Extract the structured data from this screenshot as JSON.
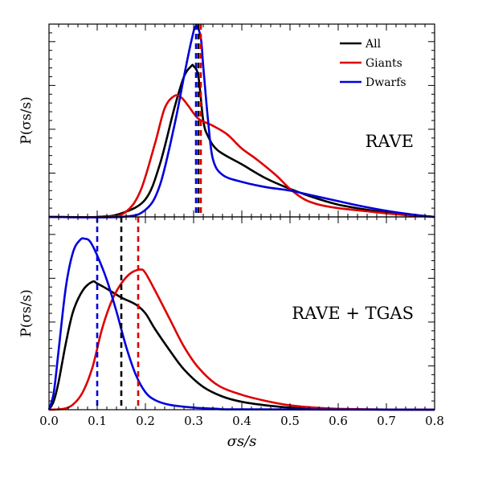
{
  "chart_data": [
    {
      "type": "line",
      "panel": "top",
      "label": "RAVE",
      "ylabel": "P(σs/s)",
      "xlim": [
        0,
        0.8
      ],
      "ylim": [
        0,
        1.1
      ],
      "legend": {
        "placement": "top-right",
        "entries": [
          "All",
          "Giants",
          "Dwarfs"
        ]
      },
      "series": [
        {
          "name": "All",
          "color": "#000000",
          "points": [
            [
              0,
              0
            ],
            [
              0.1,
              0
            ],
            [
              0.15,
              0.02
            ],
            [
              0.2,
              0.1
            ],
            [
              0.23,
              0.3
            ],
            [
              0.26,
              0.62
            ],
            [
              0.28,
              0.8
            ],
            [
              0.295,
              0.86
            ],
            [
              0.3,
              0.86
            ],
            [
              0.31,
              0.8
            ],
            [
              0.32,
              0.55
            ],
            [
              0.33,
              0.46
            ],
            [
              0.35,
              0.38
            ],
            [
              0.4,
              0.3
            ],
            [
              0.45,
              0.22
            ],
            [
              0.5,
              0.16
            ],
            [
              0.55,
              0.11
            ],
            [
              0.6,
              0.07
            ],
            [
              0.65,
              0.045
            ],
            [
              0.7,
              0.025
            ],
            [
              0.75,
              0.012
            ],
            [
              0.8,
              0
            ]
          ]
        },
        {
          "name": "Giants",
          "color": "#dd0000",
          "points": [
            [
              0,
              0
            ],
            [
              0.12,
              0
            ],
            [
              0.16,
              0.03
            ],
            [
              0.19,
              0.15
            ],
            [
              0.22,
              0.42
            ],
            [
              0.24,
              0.62
            ],
            [
              0.26,
              0.69
            ],
            [
              0.275,
              0.68
            ],
            [
              0.29,
              0.63
            ],
            [
              0.31,
              0.56
            ],
            [
              0.34,
              0.52
            ],
            [
              0.37,
              0.47
            ],
            [
              0.4,
              0.39
            ],
            [
              0.43,
              0.33
            ],
            [
              0.47,
              0.24
            ],
            [
              0.5,
              0.16
            ],
            [
              0.53,
              0.1
            ],
            [
              0.56,
              0.07
            ],
            [
              0.6,
              0.05
            ],
            [
              0.65,
              0.035
            ],
            [
              0.7,
              0.02
            ],
            [
              0.75,
              0.008
            ],
            [
              0.8,
              0
            ]
          ]
        },
        {
          "name": "Dwarfs",
          "color": "#0000dd",
          "points": [
            [
              0,
              0
            ],
            [
              0.15,
              0
            ],
            [
              0.2,
              0.04
            ],
            [
              0.23,
              0.18
            ],
            [
              0.26,
              0.52
            ],
            [
              0.28,
              0.8
            ],
            [
              0.295,
              1.0
            ],
            [
              0.305,
              1.09
            ],
            [
              0.315,
              1.02
            ],
            [
              0.32,
              0.86
            ],
            [
              0.33,
              0.55
            ],
            [
              0.34,
              0.33
            ],
            [
              0.36,
              0.24
            ],
            [
              0.4,
              0.2
            ],
            [
              0.45,
              0.17
            ],
            [
              0.5,
              0.15
            ],
            [
              0.55,
              0.12
            ],
            [
              0.6,
              0.09
            ],
            [
              0.65,
              0.06
            ],
            [
              0.7,
              0.035
            ],
            [
              0.75,
              0.015
            ],
            [
              0.8,
              0
            ]
          ]
        }
      ],
      "medians": [
        {
          "name": "Dwarfs",
          "x": 0.305,
          "color": "#0000dd"
        },
        {
          "name": "All",
          "x": 0.31,
          "color": "#000000"
        },
        {
          "name": "Giants",
          "x": 0.315,
          "color": "#dd0000"
        }
      ]
    },
    {
      "type": "line",
      "panel": "bottom",
      "label": "RAVE + TGAS",
      "xlabel": "σs/s",
      "ylabel": "P(σs/s)",
      "xlim": [
        0,
        0.8
      ],
      "ylim": [
        0,
        1.1
      ],
      "xticks": [
        "0.0",
        "0.1",
        "0.2",
        "0.3",
        "0.4",
        "0.5",
        "0.6",
        "0.7",
        "0.8"
      ],
      "series": [
        {
          "name": "All",
          "color": "#000000",
          "points": [
            [
              0,
              0
            ],
            [
              0.01,
              0.05
            ],
            [
              0.02,
              0.16
            ],
            [
              0.035,
              0.38
            ],
            [
              0.05,
              0.56
            ],
            [
              0.07,
              0.68
            ],
            [
              0.09,
              0.73
            ],
            [
              0.1,
              0.72
            ],
            [
              0.12,
              0.69
            ],
            [
              0.15,
              0.64
            ],
            [
              0.18,
              0.6
            ],
            [
              0.2,
              0.55
            ],
            [
              0.22,
              0.46
            ],
            [
              0.25,
              0.34
            ],
            [
              0.28,
              0.23
            ],
            [
              0.32,
              0.13
            ],
            [
              0.36,
              0.075
            ],
            [
              0.4,
              0.045
            ],
            [
              0.45,
              0.025
            ],
            [
              0.5,
              0.012
            ],
            [
              0.55,
              0.005
            ],
            [
              0.6,
              0.002
            ],
            [
              0.8,
              0
            ]
          ]
        },
        {
          "name": "Giants",
          "color": "#dd0000",
          "points": [
            [
              0,
              0
            ],
            [
              0.03,
              0.005
            ],
            [
              0.05,
              0.03
            ],
            [
              0.07,
              0.1
            ],
            [
              0.09,
              0.24
            ],
            [
              0.11,
              0.46
            ],
            [
              0.13,
              0.62
            ],
            [
              0.15,
              0.72
            ],
            [
              0.17,
              0.78
            ],
            [
              0.19,
              0.8
            ],
            [
              0.2,
              0.78
            ],
            [
              0.22,
              0.68
            ],
            [
              0.25,
              0.52
            ],
            [
              0.28,
              0.36
            ],
            [
              0.31,
              0.24
            ],
            [
              0.35,
              0.14
            ],
            [
              0.4,
              0.085
            ],
            [
              0.45,
              0.05
            ],
            [
              0.5,
              0.025
            ],
            [
              0.55,
              0.012
            ],
            [
              0.6,
              0.005
            ],
            [
              0.7,
              0.001
            ],
            [
              0.8,
              0
            ]
          ]
        },
        {
          "name": "Dwarfs",
          "color": "#0000dd",
          "points": [
            [
              0,
              0
            ],
            [
              0.01,
              0.1
            ],
            [
              0.02,
              0.34
            ],
            [
              0.035,
              0.7
            ],
            [
              0.05,
              0.9
            ],
            [
              0.065,
              0.97
            ],
            [
              0.075,
              0.975
            ],
            [
              0.085,
              0.96
            ],
            [
              0.1,
              0.88
            ],
            [
              0.12,
              0.74
            ],
            [
              0.14,
              0.56
            ],
            [
              0.16,
              0.36
            ],
            [
              0.18,
              0.2
            ],
            [
              0.2,
              0.1
            ],
            [
              0.22,
              0.055
            ],
            [
              0.25,
              0.028
            ],
            [
              0.3,
              0.012
            ],
            [
              0.35,
              0.005
            ],
            [
              0.4,
              0.002
            ],
            [
              0.8,
              0
            ]
          ]
        }
      ],
      "medians": [
        {
          "name": "Dwarfs",
          "x": 0.1,
          "color": "#0000dd"
        },
        {
          "name": "All",
          "x": 0.15,
          "color": "#000000"
        },
        {
          "name": "Giants",
          "x": 0.185,
          "color": "#dd0000"
        }
      ]
    }
  ]
}
